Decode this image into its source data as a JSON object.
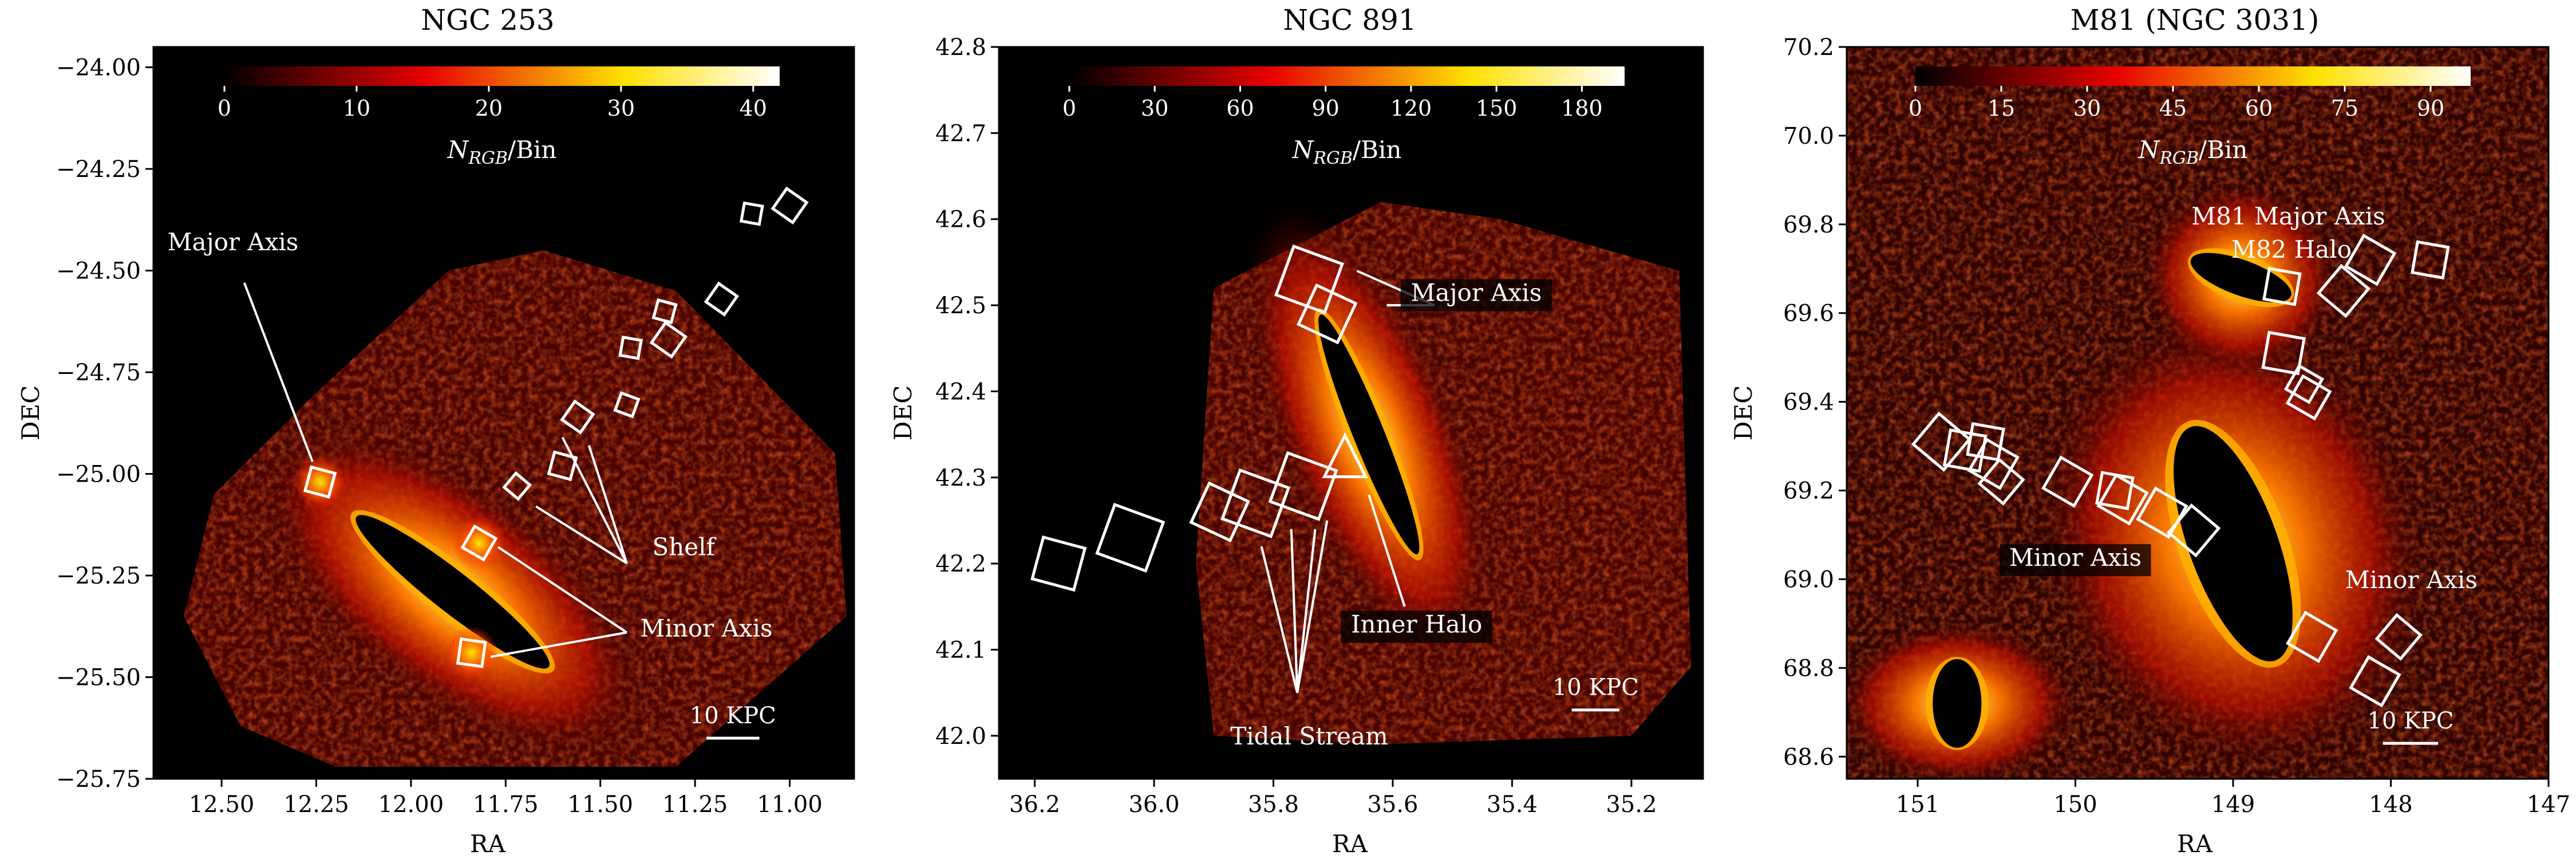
{
  "figure": {
    "background": "#000000",
    "accent": "#ffffff"
  },
  "chart_data": [
    {
      "type": "heatmap",
      "title": "NGC 253",
      "xlabel": "RA",
      "ylabel": "DEC",
      "xlim": [
        12.68,
        10.83
      ],
      "ylim": [
        -25.75,
        -23.95
      ],
      "xticks": [
        12.5,
        12.25,
        12.0,
        11.75,
        11.5,
        11.25,
        11.0
      ],
      "xtick_labels": [
        "12.50",
        "12.25",
        "12.00",
        "11.75",
        "11.50",
        "11.25",
        "11.00"
      ],
      "yticks": [
        -24.0,
        -24.25,
        -24.5,
        -24.75,
        -25.0,
        -25.25,
        -25.5,
        -25.75
      ],
      "ytick_labels": [
        "−24.00",
        "−24.25",
        "−24.50",
        "−24.75",
        "−25.00",
        "−25.25",
        "−25.50",
        "−25.75"
      ],
      "colorbar": {
        "label": "N_RGB/Bin",
        "label_main": "N",
        "label_sub": "RGB",
        "label_rest": "/Bin",
        "min": 0,
        "max": 42,
        "ticks": [
          0,
          10,
          20,
          30,
          40
        ]
      },
      "scale_bar": "10 KPC",
      "scale_bar_ra": [
        11.22,
        11.08
      ],
      "scale_bar_dec": -25.65,
      "galaxy": {
        "ra": 11.89,
        "dec": -25.29,
        "major_deg": 0.3,
        "minor_deg": 0.05,
        "pa_deg": 52
      },
      "data_footprint": [
        [
          12.6,
          -25.35
        ],
        [
          12.45,
          -25.62
        ],
        [
          12.2,
          -25.72
        ],
        [
          11.3,
          -25.72
        ],
        [
          10.85,
          -25.35
        ],
        [
          10.88,
          -24.95
        ],
        [
          11.3,
          -24.55
        ],
        [
          11.65,
          -24.45
        ],
        [
          11.9,
          -24.5
        ],
        [
          12.25,
          -24.8
        ],
        [
          12.52,
          -25.05
        ]
      ],
      "fields": [
        {
          "ra": 12.24,
          "dec": -25.02,
          "size": 0.06,
          "rot": 15,
          "glow": true
        },
        {
          "ra": 11.82,
          "dec": -25.17,
          "size": 0.06,
          "rot": 30,
          "glow": true
        },
        {
          "ra": 11.84,
          "dec": -25.44,
          "size": 0.06,
          "rot": 8,
          "glow": true
        },
        {
          "ra": 11.72,
          "dec": -25.03,
          "size": 0.045,
          "rot": 40
        },
        {
          "ra": 11.6,
          "dec": -24.98,
          "size": 0.055,
          "rot": 15
        },
        {
          "ra": 11.56,
          "dec": -24.86,
          "size": 0.055,
          "rot": 35
        },
        {
          "ra": 11.43,
          "dec": -24.83,
          "size": 0.045,
          "rot": 20
        },
        {
          "ra": 11.42,
          "dec": -24.69,
          "size": 0.045,
          "rot": 10
        },
        {
          "ra": 11.32,
          "dec": -24.67,
          "size": 0.06,
          "rot": 35
        },
        {
          "ra": 11.33,
          "dec": -24.6,
          "size": 0.045,
          "rot": 15
        },
        {
          "ra": 11.18,
          "dec": -24.57,
          "size": 0.055,
          "rot": 35
        },
        {
          "ra": 11.1,
          "dec": -24.36,
          "size": 0.045,
          "rot": 10
        },
        {
          "ra": 11.0,
          "dec": -24.34,
          "size": 0.06,
          "rot": 35
        }
      ],
      "annotations": [
        {
          "text": "Major Axis",
          "ra": 12.47,
          "dec": -24.45,
          "bg": true,
          "lines": [
            [
              12.44,
              -24.53,
              12.26,
              -24.97
            ]
          ]
        },
        {
          "text": "Shelf",
          "ra": 11.28,
          "dec": -25.2,
          "bg": false,
          "lines": [
            [
              11.43,
              -25.22,
              11.6,
              -24.91
            ],
            [
              11.43,
              -25.22,
              11.53,
              -24.93
            ],
            [
              11.43,
              -25.22,
              11.67,
              -25.08
            ]
          ]
        },
        {
          "text": "Minor Axis",
          "ra": 11.22,
          "dec": -25.4,
          "bg": false,
          "lines": [
            [
              11.43,
              -25.39,
              11.77,
              -25.18
            ],
            [
              11.43,
              -25.39,
              11.79,
              -25.45
            ]
          ]
        }
      ]
    },
    {
      "type": "heatmap",
      "title": "NGC 891",
      "xlabel": "RA",
      "ylabel": "DEC",
      "xlim": [
        36.26,
        35.08
      ],
      "ylim": [
        41.95,
        42.8
      ],
      "xticks": [
        36.2,
        36.0,
        35.8,
        35.6,
        35.4,
        35.2
      ],
      "xtick_labels": [
        "36.2",
        "36.0",
        "35.8",
        "35.6",
        "35.4",
        "35.2"
      ],
      "yticks": [
        42.0,
        42.1,
        42.2,
        42.3,
        42.4,
        42.5,
        42.6,
        42.7,
        42.8
      ],
      "ytick_labels": [
        "42.0",
        "42.1",
        "42.2",
        "42.3",
        "42.4",
        "42.5",
        "42.6",
        "42.7",
        "42.8"
      ],
      "colorbar": {
        "label": "N_RGB/Bin",
        "label_main": "N",
        "label_sub": "RGB",
        "label_rest": "/Bin",
        "min": 0,
        "max": 195,
        "ticks": [
          0,
          30,
          60,
          90,
          120,
          150,
          180
        ]
      },
      "scale_bar": "10 KPC",
      "scale_bar_ra": [
        35.3,
        35.22
      ],
      "scale_bar_dec": 42.03,
      "galaxy": {
        "ra": 35.64,
        "dec": 42.35,
        "major_deg": 0.15,
        "minor_deg": 0.018,
        "pa_deg": 22
      },
      "data_footprint": [
        [
          35.9,
          42.52
        ],
        [
          35.62,
          42.62
        ],
        [
          35.42,
          42.6
        ],
        [
          35.12,
          42.54
        ],
        [
          35.1,
          42.08
        ],
        [
          35.2,
          42.0
        ],
        [
          35.62,
          41.99
        ],
        [
          35.9,
          42.0
        ],
        [
          35.93,
          42.2
        ]
      ],
      "fields": [
        {
          "ra": 36.16,
          "dec": 42.2,
          "size": 0.05,
          "rot": 15
        },
        {
          "ra": 36.04,
          "dec": 42.23,
          "size": 0.06,
          "rot": 20
        },
        {
          "ra": 35.89,
          "dec": 42.26,
          "size": 0.05,
          "rot": 25
        },
        {
          "ra": 35.83,
          "dec": 42.27,
          "size": 0.06,
          "rot": 20
        },
        {
          "ra": 35.75,
          "dec": 42.29,
          "size": 0.06,
          "rot": 20
        },
        {
          "ra": 35.74,
          "dec": 42.53,
          "size": 0.06,
          "rot": 20
        },
        {
          "ra": 35.71,
          "dec": 42.49,
          "size": 0.05,
          "rot": 25
        }
      ],
      "triangle": {
        "ra": 35.68,
        "dec": 42.32
      },
      "annotations": [
        {
          "text": "Major Axis",
          "ra": 35.46,
          "dec": 42.505,
          "bg": true,
          "lines": [
            [
              35.53,
              42.5,
              35.61,
              42.5
            ],
            [
              35.53,
              42.5,
              35.66,
              42.54
            ]
          ]
        },
        {
          "text": "Tidal Stream",
          "ra": 35.74,
          "dec": 41.99,
          "bg": false,
          "lines": [
            [
              35.76,
              42.05,
              35.82,
              42.22
            ],
            [
              35.76,
              42.05,
              35.71,
              42.25
            ],
            [
              35.76,
              42.05,
              35.77,
              42.24
            ],
            [
              35.76,
              42.05,
              35.73,
              42.24
            ]
          ]
        },
        {
          "text": "Inner Halo",
          "ra": 35.56,
          "dec": 42.12,
          "bg": true,
          "lines": [
            [
              35.58,
              42.15,
              35.64,
              42.28
            ]
          ]
        }
      ]
    },
    {
      "type": "heatmap",
      "title": "M81 (NGC 3031)",
      "xlabel": "RA",
      "ylabel": "DEC",
      "xlim": [
        151.45,
        147.0
      ],
      "ylim": [
        68.55,
        70.2
      ],
      "xticks": [
        151,
        150,
        149,
        148,
        147
      ],
      "xtick_labels": [
        "151",
        "150",
        "149",
        "148",
        "147"
      ],
      "yticks": [
        68.6,
        68.8,
        69.0,
        69.2,
        69.4,
        69.6,
        69.8,
        70.0,
        70.2
      ],
      "ytick_labels": [
        "68.6",
        "68.8",
        "69.0",
        "69.2",
        "69.4",
        "69.6",
        "69.8",
        "70.0",
        "70.2"
      ],
      "colorbar": {
        "label": "N_RGB/Bin",
        "label_main": "N",
        "label_sub": "RGB",
        "label_rest": "/Bin",
        "min": 0,
        "max": 97,
        "ticks": [
          0,
          15,
          30,
          45,
          60,
          75,
          90
        ]
      },
      "scale_bar": "10 KPC",
      "scale_bar_ra": [
        148.05,
        147.7
      ],
      "scale_bar_dec": 68.63,
      "galaxies": [
        {
          "ra": 149.0,
          "dec": 69.08,
          "major_deg": 0.28,
          "minor_deg": 0.1,
          "pa_deg": 20
        },
        {
          "ra": 148.95,
          "dec": 69.68,
          "major_deg": 0.12,
          "minor_deg": 0.04,
          "pa_deg": 70
        },
        {
          "ra": 150.75,
          "dec": 68.72,
          "major_deg": 0.1,
          "minor_deg": 0.055,
          "pa_deg": 0
        }
      ],
      "fields": [
        {
          "ra": 150.85,
          "dec": 69.31,
          "size": 0.09,
          "rot": 40
        },
        {
          "ra": 150.7,
          "dec": 69.29,
          "size": 0.08,
          "rot": 10
        },
        {
          "ra": 150.57,
          "dec": 69.31,
          "size": 0.07,
          "rot": 10
        },
        {
          "ra": 150.52,
          "dec": 69.26,
          "size": 0.08,
          "rot": 30
        },
        {
          "ra": 150.47,
          "dec": 69.22,
          "size": 0.07,
          "rot": 40
        },
        {
          "ra": 150.05,
          "dec": 69.22,
          "size": 0.08,
          "rot": 30
        },
        {
          "ra": 149.75,
          "dec": 69.2,
          "size": 0.07,
          "rot": 10
        },
        {
          "ra": 149.7,
          "dec": 69.18,
          "size": 0.08,
          "rot": 30
        },
        {
          "ra": 149.45,
          "dec": 69.15,
          "size": 0.08,
          "rot": 30
        },
        {
          "ra": 149.25,
          "dec": 69.11,
          "size": 0.08,
          "rot": 40
        },
        {
          "ra": 148.69,
          "dec": 69.66,
          "size": 0.07,
          "rot": 10
        },
        {
          "ra": 148.68,
          "dec": 69.51,
          "size": 0.08,
          "rot": 10
        },
        {
          "ra": 148.55,
          "dec": 69.44,
          "size": 0.06,
          "rot": 30
        },
        {
          "ra": 148.52,
          "dec": 69.41,
          "size": 0.07,
          "rot": 30
        },
        {
          "ra": 148.3,
          "dec": 69.65,
          "size": 0.08,
          "rot": 40
        },
        {
          "ra": 148.13,
          "dec": 69.72,
          "size": 0.08,
          "rot": 30
        },
        {
          "ra": 147.75,
          "dec": 69.72,
          "size": 0.07,
          "rot": 10
        },
        {
          "ra": 148.5,
          "dec": 68.87,
          "size": 0.08,
          "rot": 30
        },
        {
          "ra": 147.95,
          "dec": 68.87,
          "size": 0.07,
          "rot": 40
        },
        {
          "ra": 148.1,
          "dec": 68.77,
          "size": 0.08,
          "rot": 30
        }
      ],
      "annotations": [
        {
          "text": "M81 Major Axis",
          "ra": 148.65,
          "dec": 69.8,
          "bg": false,
          "lines": []
        },
        {
          "text": "M82 Halo",
          "ra": 148.63,
          "dec": 69.725,
          "bg": false,
          "lines": []
        },
        {
          "text": "Minor Axis",
          "ra": 150.0,
          "dec": 69.03,
          "bg": true,
          "lines": []
        },
        {
          "text": "Minor Axis",
          "ra": 147.87,
          "dec": 68.98,
          "bg": false,
          "lines": []
        }
      ]
    }
  ]
}
